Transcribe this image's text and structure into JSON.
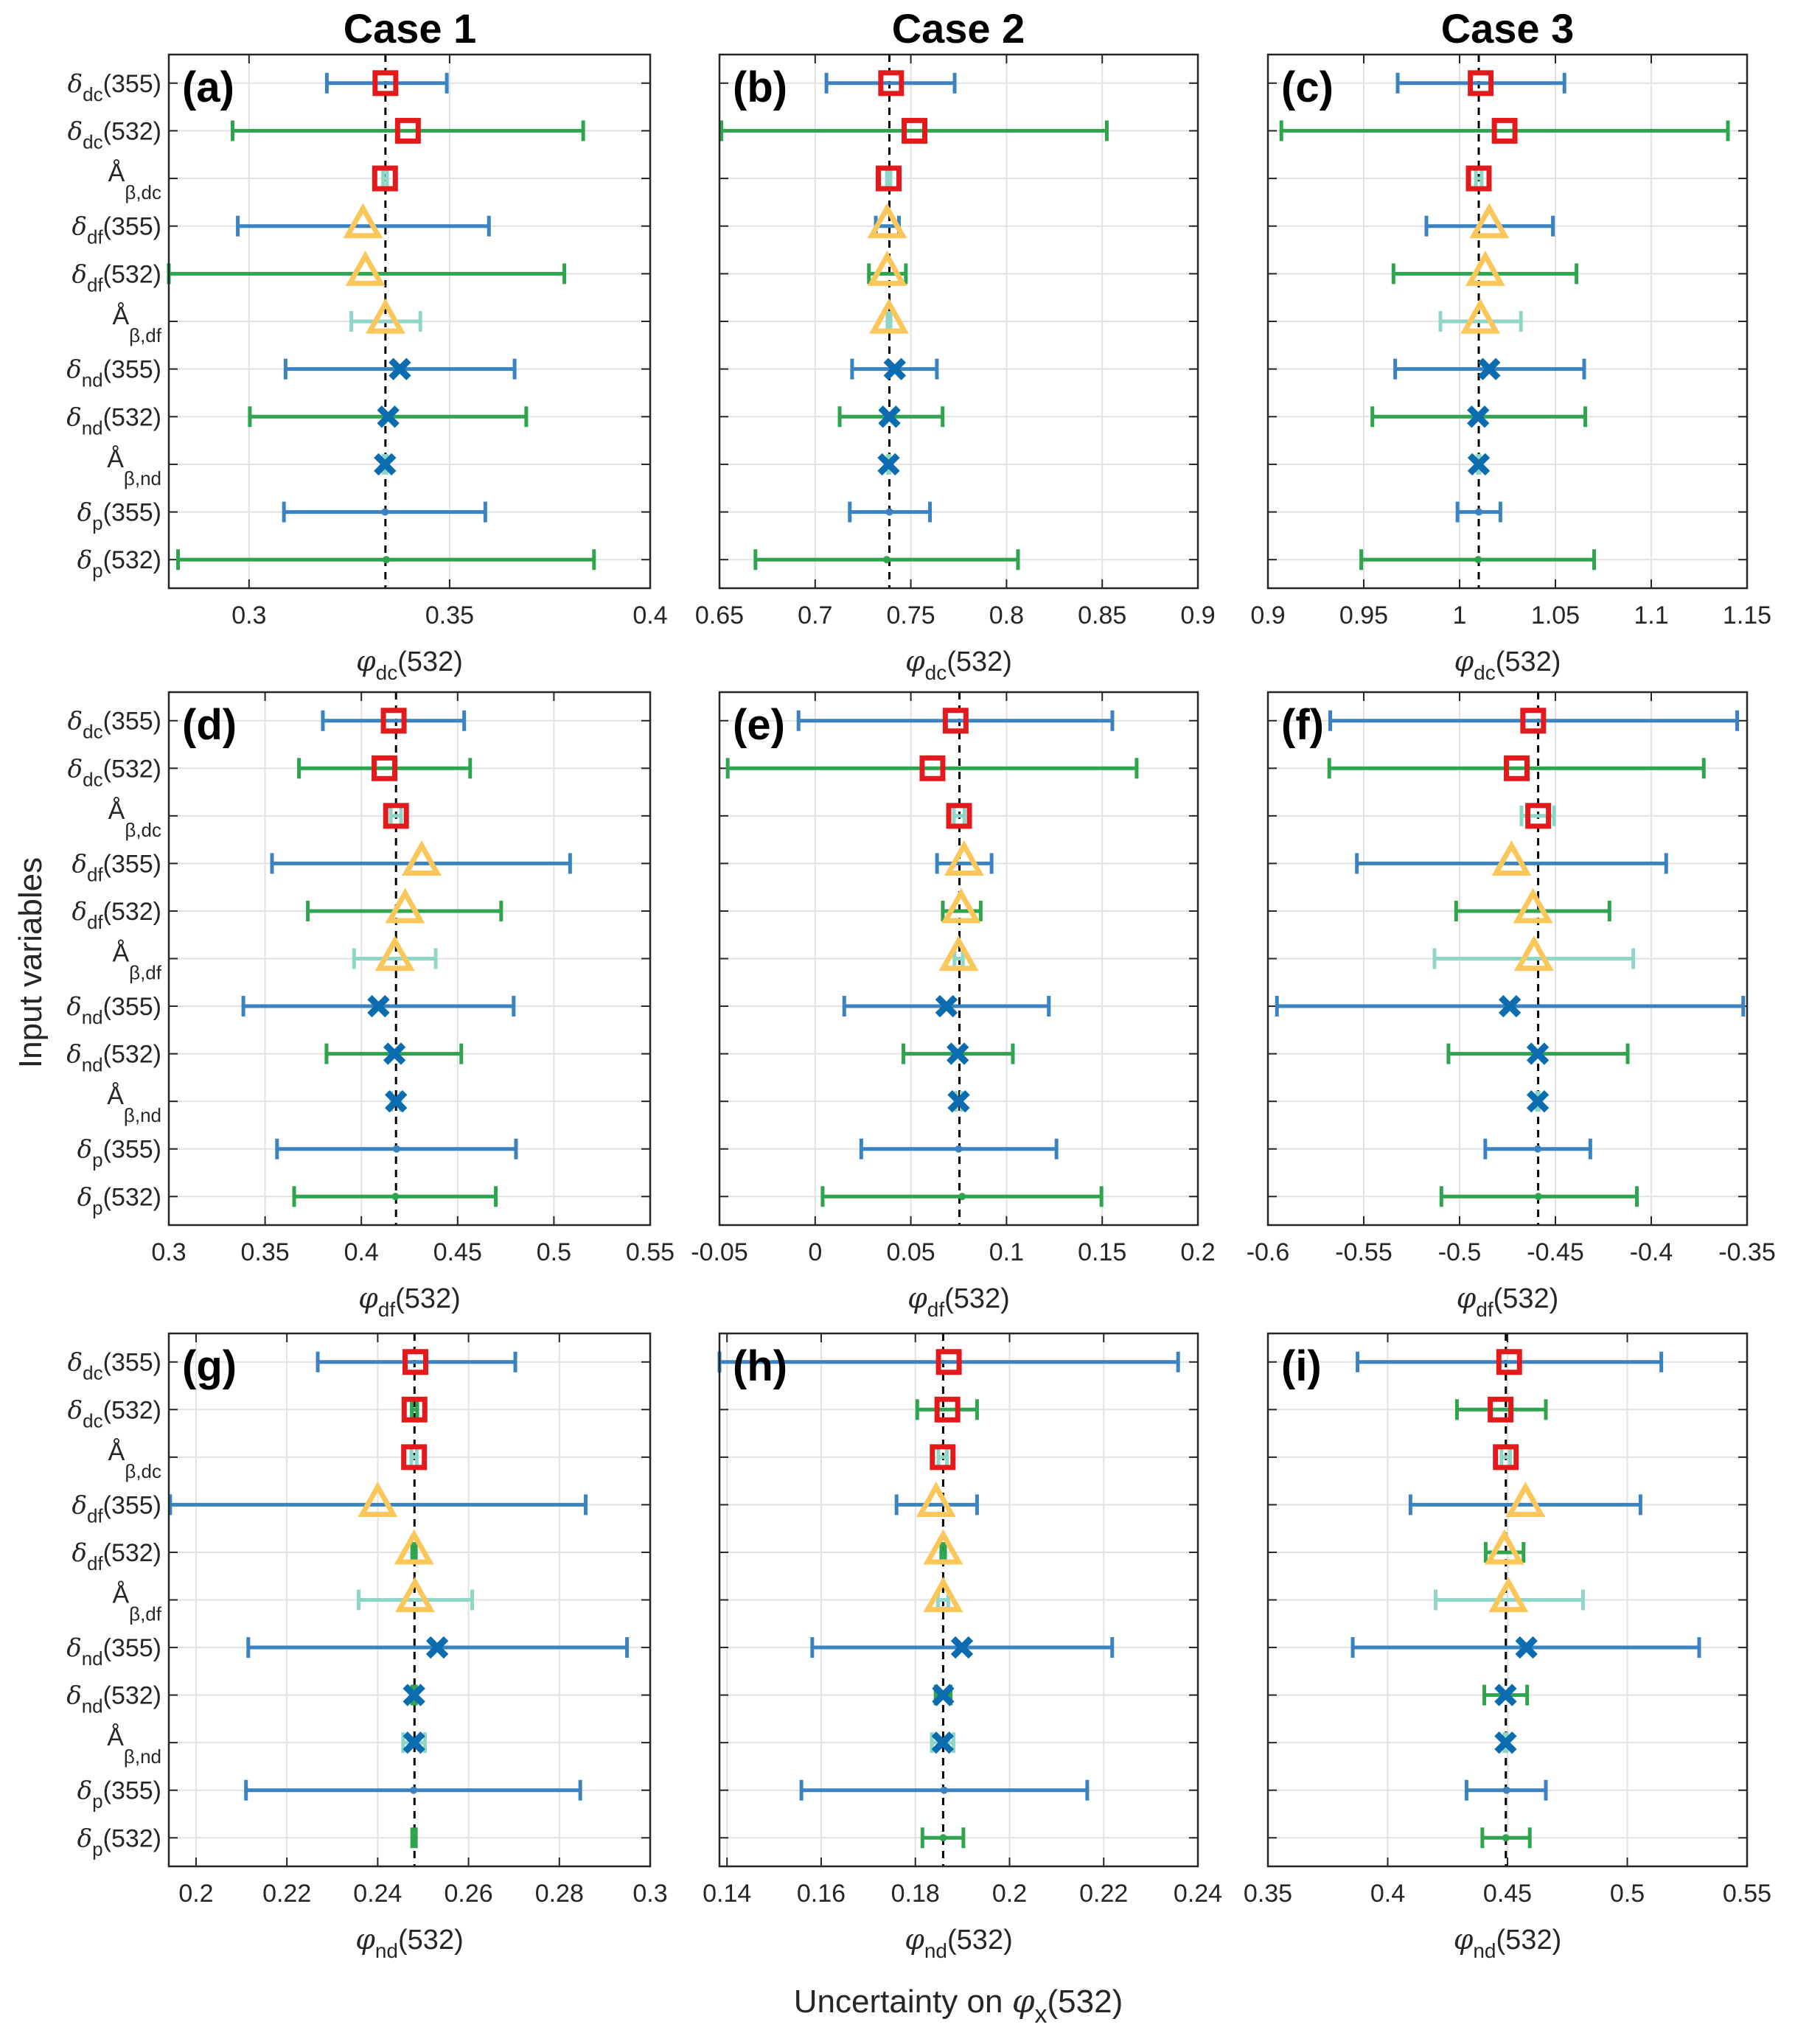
{
  "figure": {
    "column_titles": [
      "Case 1",
      "Case 2",
      "Case 3"
    ],
    "y_super_label": "Input variables",
    "x_super_label": {
      "prefix": "Uncertainty on ",
      "symbol": "φ",
      "sub": "x",
      "suffix": "(532)"
    }
  },
  "legend_encoding": {
    "marker_by_group": {
      "dc": "square",
      "df": "triangle",
      "nd": "x",
      "p": "dot"
    },
    "errorbar_color_by_wavelength": {
      "355": "#3a82c0",
      "532": "#2ea44f",
      "angstrom": "#8fd6c8"
    },
    "marker_colors": {
      "square": "#e31a1c",
      "triangle": "#fbc75a",
      "x": "#0b6db0"
    },
    "reference_line": "dashed black vertical line at nominal value"
  },
  "chart_data": [
    {
      "type": "errorbar",
      "panel": "(a)",
      "case": "Case 1",
      "xlabel": {
        "symbol": "φ",
        "sub": "dc",
        "suffix": "(532)"
      },
      "xlim": [
        0.28,
        0.4
      ],
      "xticks": [
        0.3,
        0.35,
        0.4
      ],
      "xtick_labels": [
        "0.3",
        "0.35",
        "0.4"
      ],
      "grid": true,
      "reference": 0.334,
      "categories": [
        "δdc(355)",
        "δdc(532)",
        "Åβ,dc",
        "δdf(355)",
        "δdf(532)",
        "Åβ,df",
        "δnd(355)",
        "δnd(532)",
        "Åβ,nd",
        "δp(355)",
        "δp(532)"
      ],
      "points": [
        {
          "center": 0.334,
          "low": 0.3194,
          "high": 0.3493
        },
        {
          "center": 0.3396,
          "low": 0.2959,
          "high": 0.3833
        },
        {
          "center": 0.3339,
          "low": 0.3334,
          "high": 0.3344
        },
        {
          "center": 0.3284,
          "low": 0.2972,
          "high": 0.3598
        },
        {
          "center": 0.329,
          "low": 0.2797,
          "high": 0.3786
        },
        {
          "center": 0.334,
          "low": 0.3255,
          "high": 0.3427
        },
        {
          "center": 0.3376,
          "low": 0.3091,
          "high": 0.3662
        },
        {
          "center": 0.3347,
          "low": 0.3002,
          "high": 0.3691
        },
        {
          "center": 0.3339,
          "low": 0.3335,
          "high": 0.3343
        },
        {
          "center": 0.3339,
          "low": 0.3087,
          "high": 0.3589
        },
        {
          "center": 0.3342,
          "low": 0.2823,
          "high": 0.386
        }
      ]
    },
    {
      "type": "errorbar",
      "panel": "(b)",
      "case": "Case 2",
      "xlabel": {
        "symbol": "φ",
        "sub": "dc",
        "suffix": "(532)"
      },
      "xlim": [
        0.65,
        0.9
      ],
      "xticks": [
        0.65,
        0.7,
        0.75,
        0.8,
        0.85,
        0.9
      ],
      "xtick_labels": [
        "0.65",
        "0.7",
        "0.75",
        "0.8",
        "0.85",
        "0.9"
      ],
      "grid": true,
      "reference": 0.7388,
      "categories": [
        "δdc(355)",
        "δdc(532)",
        "Åβ,dc",
        "δdf(355)",
        "δdf(532)",
        "Åβ,df",
        "δnd(355)",
        "δnd(532)",
        "Åβ,nd",
        "δp(355)",
        "δp(532)"
      ],
      "points": [
        {
          "center": 0.7397,
          "low": 0.7059,
          "high": 0.7729
        },
        {
          "center": 0.7519,
          "low": 0.651,
          "high": 0.8524
        },
        {
          "center": 0.7384,
          "low": 0.7375,
          "high": 0.7393
        },
        {
          "center": 0.7376,
          "low": 0.7317,
          "high": 0.7438
        },
        {
          "center": 0.7376,
          "low": 0.7281,
          "high": 0.7474
        },
        {
          "center": 0.7386,
          "low": 0.7378,
          "high": 0.7394
        },
        {
          "center": 0.7416,
          "low": 0.7193,
          "high": 0.7636
        },
        {
          "center": 0.7388,
          "low": 0.7128,
          "high": 0.7666
        },
        {
          "center": 0.7384,
          "low": 0.738,
          "high": 0.7388
        },
        {
          "center": 0.7388,
          "low": 0.7181,
          "high": 0.76
        },
        {
          "center": 0.7374,
          "low": 0.6688,
          "high": 0.806
        }
      ]
    },
    {
      "type": "errorbar",
      "panel": "(c)",
      "case": "Case 3",
      "xlabel": {
        "symbol": "φ",
        "sub": "dc",
        "suffix": "(532)"
      },
      "xlim": [
        0.9,
        1.15
      ],
      "xticks": [
        0.9,
        0.95,
        1.0,
        1.05,
        1.1,
        1.15
      ],
      "xtick_labels": [
        "0.9",
        "0.95",
        "1",
        "1.05",
        "1.1",
        "1.15"
      ],
      "grid": true,
      "reference": 1.01,
      "categories": [
        "δdc(355)",
        "δdc(532)",
        "Åβ,dc",
        "δdf(355)",
        "δdf(532)",
        "Åβ,df",
        "δnd(355)",
        "δnd(532)",
        "Åβ,nd",
        "δp(355)",
        "δp(532)"
      ],
      "points": [
        {
          "center": 1.011,
          "low": 0.9677,
          "high": 1.0547
        },
        {
          "center": 1.0235,
          "low": 0.907,
          "high": 1.14
        },
        {
          "center": 1.01,
          "low": 1.0085,
          "high": 1.0115
        },
        {
          "center": 1.0155,
          "low": 0.9827,
          "high": 1.0487
        },
        {
          "center": 1.0134,
          "low": 0.9655,
          "high": 1.061
        },
        {
          "center": 1.0108,
          "low": 0.99,
          "high": 1.032
        },
        {
          "center": 1.0155,
          "low": 0.9664,
          "high": 1.065
        },
        {
          "center": 1.0097,
          "low": 0.9545,
          "high": 1.0656
        },
        {
          "center": 1.01,
          "low": 1.0095,
          "high": 1.0105
        },
        {
          "center": 1.01,
          "low": 0.9989,
          "high": 1.0213
        },
        {
          "center": 1.0097,
          "low": 0.9487,
          "high": 1.0702
        }
      ]
    },
    {
      "type": "errorbar",
      "panel": "(d)",
      "case": "Case 1",
      "xlabel": {
        "symbol": "φ",
        "sub": "df",
        "suffix": "(532)"
      },
      "xlim": [
        0.3,
        0.55
      ],
      "xticks": [
        0.3,
        0.35,
        0.4,
        0.45,
        0.5,
        0.55
      ],
      "xtick_labels": [
        "0.3",
        "0.35",
        "0.4",
        "0.45",
        "0.5",
        "0.55"
      ],
      "grid": true,
      "reference": 0.418,
      "categories": [
        "δdc(355)",
        "δdc(532)",
        "Åβ,dc",
        "δdf(355)",
        "δdf(532)",
        "Åβ,df",
        "δnd(355)",
        "δnd(532)",
        "Åβ,nd",
        "δp(355)",
        "δp(532)"
      ],
      "points": [
        {
          "center": 0.4168,
          "low": 0.38,
          "high": 0.4534
        },
        {
          "center": 0.412,
          "low": 0.3676,
          "high": 0.4565
        },
        {
          "center": 0.418,
          "low": 0.4153,
          "high": 0.4206
        },
        {
          "center": 0.4313,
          "low": 0.3536,
          "high": 0.5084
        },
        {
          "center": 0.4227,
          "low": 0.3722,
          "high": 0.4726
        },
        {
          "center": 0.4174,
          "low": 0.3962,
          "high": 0.4386
        },
        {
          "center": 0.4089,
          "low": 0.3387,
          "high": 0.4791
        },
        {
          "center": 0.4172,
          "low": 0.3819,
          "high": 0.4519
        },
        {
          "center": 0.418,
          "low": 0.4155,
          "high": 0.4205
        },
        {
          "center": 0.4183,
          "low": 0.3562,
          "high": 0.4803
        },
        {
          "center": 0.4177,
          "low": 0.3651,
          "high": 0.4698
        }
      ]
    },
    {
      "type": "errorbar",
      "panel": "(e)",
      "case": "Case 2",
      "xlabel": {
        "symbol": "φ",
        "sub": "df",
        "suffix": "(532)"
      },
      "xlim": [
        -0.05,
        0.2
      ],
      "xticks": [
        -0.05,
        0,
        0.05,
        0.1,
        0.15,
        0.2
      ],
      "xtick_labels": [
        "-0.05",
        "0",
        "0.05",
        "0.1",
        "0.15",
        "0.2"
      ],
      "grid": true,
      "reference": 0.0754,
      "categories": [
        "δdc(355)",
        "δdc(532)",
        "Åβ,dc",
        "δdf(355)",
        "δdf(532)",
        "Åβ,df",
        "δnd(355)",
        "δnd(532)",
        "Åβ,nd",
        "δp(355)",
        "δp(532)"
      ],
      "points": [
        {
          "center": 0.0734,
          "low": -0.0087,
          "high": 0.1553
        },
        {
          "center": 0.0613,
          "low": -0.0457,
          "high": 0.168
        },
        {
          "center": 0.0752,
          "low": 0.0725,
          "high": 0.078
        },
        {
          "center": 0.0778,
          "low": 0.0637,
          "high": 0.0922
        },
        {
          "center": 0.0762,
          "low": 0.0667,
          "high": 0.0865
        },
        {
          "center": 0.075,
          "low": 0.0728,
          "high": 0.0772
        },
        {
          "center": 0.0686,
          "low": 0.0152,
          "high": 0.1221
        },
        {
          "center": 0.0745,
          "low": 0.0461,
          "high": 0.1033
        },
        {
          "center": 0.075,
          "low": 0.0735,
          "high": 0.0765
        },
        {
          "center": 0.075,
          "low": 0.0241,
          "high": 0.1261
        },
        {
          "center": 0.0768,
          "low": 0.0039,
          "high": 0.1496
        }
      ]
    },
    {
      "type": "errorbar",
      "panel": "(f)",
      "case": "Case 3",
      "xlabel": {
        "symbol": "φ",
        "sub": "df",
        "suffix": "(532)"
      },
      "xlim": [
        -0.6,
        -0.35
      ],
      "xticks": [
        -0.6,
        -0.55,
        -0.5,
        -0.45,
        -0.4,
        -0.35
      ],
      "xtick_labels": [
        "-0.6",
        "-0.55",
        "-0.5",
        "-0.45",
        "-0.4",
        "-0.35"
      ],
      "grid": true,
      "reference": -0.459,
      "categories": [
        "δdc(355)",
        "δdc(532)",
        "Åβ,dc",
        "δdf(355)",
        "δdf(532)",
        "Åβ,df",
        "δnd(355)",
        "δnd(532)",
        "Åβ,nd",
        "δp(355)",
        "δp(532)"
      ],
      "points": [
        {
          "center": -0.4616,
          "low": -0.5675,
          "high": -0.3552
        },
        {
          "center": -0.4702,
          "low": -0.568,
          "high": -0.3726
        },
        {
          "center": -0.459,
          "low": -0.4677,
          "high": -0.4507
        },
        {
          "center": -0.4729,
          "low": -0.5536,
          "high": -0.3922
        },
        {
          "center": -0.4617,
          "low": -0.5018,
          "high": -0.4218
        },
        {
          "center": -0.4612,
          "low": -0.5131,
          "high": -0.4094
        },
        {
          "center": -0.4738,
          "low": -0.5953,
          "high": -0.352
        },
        {
          "center": -0.4592,
          "low": -0.5058,
          "high": -0.4123
        },
        {
          "center": -0.4592,
          "low": -0.4597,
          "high": -0.4587
        },
        {
          "center": -0.4592,
          "low": -0.4866,
          "high": -0.4318
        },
        {
          "center": -0.4589,
          "low": -0.5095,
          "high": -0.4075
        }
      ]
    },
    {
      "type": "errorbar",
      "panel": "(g)",
      "case": "Case 1",
      "xlabel": {
        "symbol": "φ",
        "sub": "nd",
        "suffix": "(532)"
      },
      "xlim": [
        0.194,
        0.3
      ],
      "xticks": [
        0.2,
        0.22,
        0.24,
        0.26,
        0.28,
        0.3
      ],
      "xtick_labels": [
        "0.2",
        "0.22",
        "0.24",
        "0.26",
        "0.28",
        "0.3"
      ],
      "grid": true,
      "reference": 0.2481,
      "categories": [
        "δdc(355)",
        "δdc(532)",
        "Åβ,dc",
        "δdf(355)",
        "δdf(532)",
        "Åβ,df",
        "δnd(355)",
        "δnd(532)",
        "Åβ,nd",
        "δp(355)",
        "δp(532)"
      ],
      "points": [
        {
          "center": 0.2483,
          "low": 0.2268,
          "high": 0.2703
        },
        {
          "center": 0.2481,
          "low": 0.2475,
          "high": 0.2487
        },
        {
          "center": 0.248,
          "low": 0.2474,
          "high": 0.2486
        },
        {
          "center": 0.24,
          "low": 0.1943,
          "high": 0.2858
        },
        {
          "center": 0.248,
          "low": 0.2476,
          "high": 0.2484
        },
        {
          "center": 0.2482,
          "low": 0.2358,
          "high": 0.2608
        },
        {
          "center": 0.2531,
          "low": 0.2115,
          "high": 0.2949
        },
        {
          "center": 0.248,
          "low": 0.2476,
          "high": 0.2484
        },
        {
          "center": 0.248,
          "low": 0.2456,
          "high": 0.2504
        },
        {
          "center": 0.2479,
          "low": 0.211,
          "high": 0.2846
        },
        {
          "center": 0.248,
          "low": 0.2476,
          "high": 0.2484
        }
      ]
    },
    {
      "type": "errorbar",
      "panel": "(h)",
      "case": "Case 2",
      "xlabel": {
        "symbol": "φ",
        "sub": "nd",
        "suffix": "(532)"
      },
      "xlim": [
        0.1384,
        0.24
      ],
      "xticks": [
        0.14,
        0.16,
        0.18,
        0.2,
        0.22,
        0.24
      ],
      "xtick_labels": [
        "0.14",
        "0.16",
        "0.18",
        "0.2",
        "0.22",
        "0.24"
      ],
      "grid": true,
      "reference": 0.1859,
      "categories": [
        "δdc(355)",
        "δdc(532)",
        "Åβ,dc",
        "δdf(355)",
        "δdf(532)",
        "Åβ,df",
        "δnd(355)",
        "δnd(532)",
        "Åβ,nd",
        "δp(355)",
        "δp(532)"
      ],
      "points": [
        {
          "center": 0.1871,
          "low": 0.1384,
          "high": 0.2358
        },
        {
          "center": 0.1868,
          "low": 0.1804,
          "high": 0.1931
        },
        {
          "center": 0.1858,
          "low": 0.1849,
          "high": 0.1867
        },
        {
          "center": 0.1844,
          "low": 0.176,
          "high": 0.1931
        },
        {
          "center": 0.1859,
          "low": 0.1855,
          "high": 0.1863
        },
        {
          "center": 0.1859,
          "low": 0.1848,
          "high": 0.187
        },
        {
          "center": 0.1899,
          "low": 0.1581,
          "high": 0.2218
        },
        {
          "center": 0.1859,
          "low": 0.1843,
          "high": 0.1875
        },
        {
          "center": 0.1858,
          "low": 0.1835,
          "high": 0.1881
        },
        {
          "center": 0.1861,
          "low": 0.1558,
          "high": 0.2165
        },
        {
          "center": 0.1859,
          "low": 0.1815,
          "high": 0.1902
        }
      ]
    },
    {
      "type": "errorbar",
      "panel": "(i)",
      "case": "Case 3",
      "xlabel": {
        "symbol": "φ",
        "sub": "nd",
        "suffix": "(532)"
      },
      "xlim": [
        0.35,
        0.55
      ],
      "xticks": [
        0.35,
        0.4,
        0.45,
        0.5,
        0.55
      ],
      "xtick_labels": [
        "0.35",
        "0.4",
        "0.45",
        "0.5",
        "0.55"
      ],
      "grid": true,
      "reference": 0.4493,
      "categories": [
        "δdc(355)",
        "δdc(532)",
        "Åβ,dc",
        "δdf(355)",
        "δdf(532)",
        "Åβ,df",
        "δnd(355)",
        "δnd(532)",
        "Åβ,nd",
        "δp(355)",
        "δp(532)"
      ],
      "points": [
        {
          "center": 0.4507,
          "low": 0.3874,
          "high": 0.5142
        },
        {
          "center": 0.4471,
          "low": 0.4289,
          "high": 0.466
        },
        {
          "center": 0.4493,
          "low": 0.4475,
          "high": 0.4511
        },
        {
          "center": 0.4575,
          "low": 0.4095,
          "high": 0.5055
        },
        {
          "center": 0.4487,
          "low": 0.4409,
          "high": 0.4567
        },
        {
          "center": 0.4504,
          "low": 0.42,
          "high": 0.4815
        },
        {
          "center": 0.4579,
          "low": 0.3854,
          "high": 0.53
        },
        {
          "center": 0.4492,
          "low": 0.4403,
          "high": 0.4582
        },
        {
          "center": 0.4492,
          "low": 0.4487,
          "high": 0.4497
        },
        {
          "center": 0.4496,
          "low": 0.4329,
          "high": 0.466
        },
        {
          "center": 0.4493,
          "low": 0.4395,
          "high": 0.4593
        }
      ]
    }
  ],
  "y_tick_labels": [
    {
      "greek": "δ",
      "sub": "dc",
      "suffix": "(355)"
    },
    {
      "greek": "δ",
      "sub": "dc",
      "suffix": "(532)"
    },
    {
      "greek": "Å",
      "sub": "β,dc",
      "suffix": ""
    },
    {
      "greek": "δ",
      "sub": "df",
      "suffix": "(355)"
    },
    {
      "greek": "δ",
      "sub": "df",
      "suffix": "(532)"
    },
    {
      "greek": "Å",
      "sub": "β,df",
      "suffix": ""
    },
    {
      "greek": "δ",
      "sub": "nd",
      "suffix": "(355)"
    },
    {
      "greek": "δ",
      "sub": "nd",
      "suffix": "(532)"
    },
    {
      "greek": "Å",
      "sub": "β,nd",
      "suffix": ""
    },
    {
      "greek": "δ",
      "sub": "p",
      "suffix": "(355)"
    },
    {
      "greek": "δ",
      "sub": "p",
      "suffix": "(532)"
    }
  ]
}
